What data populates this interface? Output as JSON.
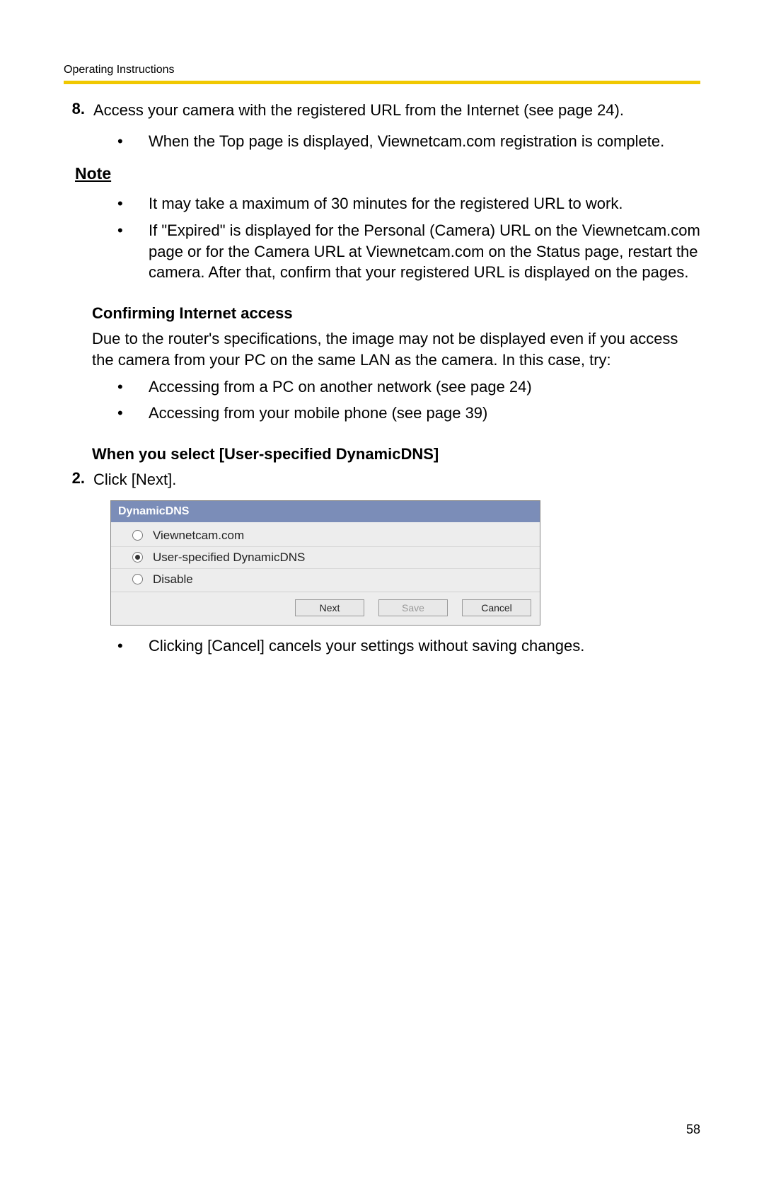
{
  "header": {
    "title": "Operating Instructions"
  },
  "step8": {
    "number": "8.",
    "text": "Access your camera with the registered URL from the Internet (see page 24).",
    "bullets": [
      "When the Top page is displayed, Viewnetcam.com registration is complete."
    ]
  },
  "note": {
    "heading": "Note",
    "bullets": [
      "It may take a maximum of 30 minutes for the registered URL to work.",
      "If \"Expired\" is displayed for the Personal (Camera) URL on the Viewnetcam.com page or for the Camera URL at Viewnetcam.com on the Status page, restart the camera. After that, confirm that your registered URL is displayed on the pages."
    ]
  },
  "confirming": {
    "heading": "Confirming Internet access",
    "body": "Due to the router's specifications, the image may not be displayed even if you access the camera from your PC on the same LAN as the camera. In this case, try:",
    "bullets": [
      "Accessing from a PC on another network (see page 24)",
      "Accessing from your mobile phone (see page 39)"
    ]
  },
  "whenSelect": {
    "heading": "When you select [User-specified DynamicDNS]"
  },
  "step2": {
    "number": "2.",
    "text": "Click [Next]."
  },
  "dialog": {
    "title": "DynamicDNS",
    "options": [
      {
        "label": "Viewnetcam.com",
        "selected": false
      },
      {
        "label": "User-specified DynamicDNS",
        "selected": true
      },
      {
        "label": "Disable",
        "selected": false
      }
    ],
    "buttons": {
      "next": "Next",
      "save": "Save",
      "cancel": "Cancel"
    },
    "colors": {
      "header_bg": "#7b8db8",
      "header_fg": "#ffffff",
      "body_bg": "#ededed"
    }
  },
  "afterDialog": {
    "bullets": [
      "Clicking [Cancel] cancels your settings without saving changes."
    ]
  },
  "pageNumber": "58"
}
